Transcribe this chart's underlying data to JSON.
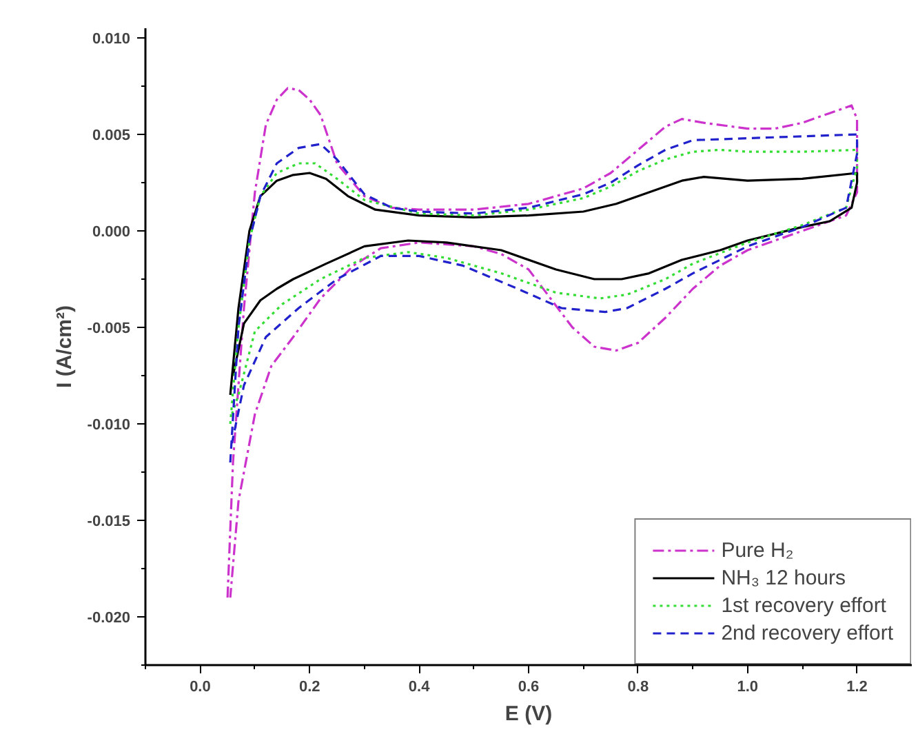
{
  "chart_data": {
    "type": "line",
    "xlabel": "E (V)",
    "ylabel": "I (A/cm²)",
    "xlim": [
      -0.1,
      1.3
    ],
    "ylim": [
      -0.0225,
      0.0105
    ],
    "xticks": [
      {
        "value": -0.1,
        "label": null
      },
      {
        "value": 0.0,
        "label": "0.0"
      },
      {
        "value": 0.1,
        "label": null
      },
      {
        "value": 0.2,
        "label": "0.2"
      },
      {
        "value": 0.3,
        "label": null
      },
      {
        "value": 0.4,
        "label": "0.4"
      },
      {
        "value": 0.5,
        "label": null
      },
      {
        "value": 0.6,
        "label": "0.6"
      },
      {
        "value": 0.7,
        "label": null
      },
      {
        "value": 0.8,
        "label": "0.8"
      },
      {
        "value": 0.9,
        "label": null
      },
      {
        "value": 1.0,
        "label": "1.0"
      },
      {
        "value": 1.1,
        "label": null
      },
      {
        "value": 1.2,
        "label": "1.2"
      }
    ],
    "yticks": [
      {
        "value": -0.0225,
        "label": null
      },
      {
        "value": -0.02,
        "label": "-0.020"
      },
      {
        "value": -0.0175,
        "label": null
      },
      {
        "value": -0.015,
        "label": "-0.015"
      },
      {
        "value": -0.0125,
        "label": null
      },
      {
        "value": -0.01,
        "label": "-0.010"
      },
      {
        "value": -0.0075,
        "label": null
      },
      {
        "value": -0.005,
        "label": "-0.005"
      },
      {
        "value": -0.0025,
        "label": null
      },
      {
        "value": 0.0,
        "label": "0.000"
      },
      {
        "value": 0.0025,
        "label": null
      },
      {
        "value": 0.005,
        "label": "0.005"
      },
      {
        "value": 0.0075,
        "label": null
      },
      {
        "value": 0.01,
        "label": "0.010"
      }
    ],
    "grid": false,
    "legend": "bottom right",
    "marker": "none",
    "series": [
      {
        "name": "Pure H₂",
        "color": "#cc33cc",
        "line_style": "dashdot",
        "x": [
          0.05,
          0.06,
          0.08,
          0.1,
          0.12,
          0.14,
          0.16,
          0.18,
          0.2,
          0.22,
          0.25,
          0.3,
          0.35,
          0.4,
          0.5,
          0.6,
          0.7,
          0.75,
          0.8,
          0.85,
          0.88,
          0.92,
          1.0,
          1.05,
          1.1,
          1.15,
          1.19,
          1.2,
          1.2,
          1.18,
          1.1,
          1.0,
          0.95,
          0.9,
          0.85,
          0.8,
          0.76,
          0.72,
          0.68,
          0.64,
          0.6,
          0.55,
          0.5,
          0.4,
          0.33,
          0.28,
          0.22,
          0.17,
          0.13,
          0.1,
          0.07,
          0.055
        ],
        "values": [
          -0.019,
          -0.012,
          -0.004,
          0.002,
          0.0055,
          0.0068,
          0.0074,
          0.0073,
          0.0068,
          0.006,
          0.0035,
          0.0018,
          0.0012,
          0.0011,
          0.0011,
          0.0014,
          0.0022,
          0.003,
          0.0042,
          0.0054,
          0.0058,
          0.0056,
          0.0053,
          0.0053,
          0.0056,
          0.0061,
          0.0065,
          0.0058,
          0.002,
          0.0008,
          0.0,
          -0.001,
          -0.0018,
          -0.003,
          -0.0045,
          -0.0058,
          -0.0062,
          -0.006,
          -0.005,
          -0.0035,
          -0.002,
          -0.0012,
          -0.0008,
          -0.0006,
          -0.0009,
          -0.0018,
          -0.0035,
          -0.0055,
          -0.007,
          -0.0095,
          -0.014,
          -0.019
        ]
      },
      {
        "name": "NH₃ 12 hours",
        "color": "#000000",
        "line_style": "solid",
        "x": [
          0.055,
          0.07,
          0.09,
          0.11,
          0.14,
          0.17,
          0.2,
          0.23,
          0.27,
          0.32,
          0.4,
          0.5,
          0.6,
          0.7,
          0.76,
          0.82,
          0.88,
          0.92,
          1.0,
          1.1,
          1.2,
          1.2,
          1.19,
          1.15,
          1.1,
          1.0,
          0.95,
          0.88,
          0.82,
          0.77,
          0.72,
          0.65,
          0.55,
          0.45,
          0.38,
          0.3,
          0.23,
          0.17,
          0.14,
          0.11,
          0.08,
          0.06
        ],
        "values": [
          -0.0085,
          -0.004,
          0.0,
          0.0018,
          0.0026,
          0.0029,
          0.003,
          0.0027,
          0.0018,
          0.0011,
          0.0008,
          0.0007,
          0.0008,
          0.001,
          0.0014,
          0.002,
          0.0026,
          0.0028,
          0.0026,
          0.0027,
          0.003,
          0.0025,
          0.0012,
          0.0005,
          0.0002,
          -0.0005,
          -0.001,
          -0.0015,
          -0.0022,
          -0.0025,
          -0.0025,
          -0.002,
          -0.001,
          -0.0006,
          -0.0005,
          -0.0008,
          -0.0017,
          -0.0025,
          -0.003,
          -0.0036,
          -0.0048,
          -0.0075
        ]
      },
      {
        "name": "1st recovery effort",
        "color": "#33dd33",
        "line_style": "dotted",
        "x": [
          0.055,
          0.07,
          0.09,
          0.11,
          0.14,
          0.18,
          0.21,
          0.25,
          0.3,
          0.4,
          0.5,
          0.6,
          0.7,
          0.75,
          0.8,
          0.85,
          0.9,
          0.95,
          1.0,
          1.1,
          1.2,
          1.2,
          1.18,
          1.1,
          1.0,
          0.9,
          0.85,
          0.78,
          0.73,
          0.65,
          0.55,
          0.45,
          0.38,
          0.3,
          0.22,
          0.15,
          0.1,
          0.07,
          0.058
        ],
        "values": [
          -0.01,
          -0.005,
          -0.0005,
          0.0018,
          0.003,
          0.0035,
          0.0035,
          0.0027,
          0.0016,
          0.0009,
          0.0008,
          0.0011,
          0.0017,
          0.0023,
          0.0031,
          0.0037,
          0.0041,
          0.0042,
          0.0041,
          0.0041,
          0.0042,
          0.0033,
          0.0012,
          0.0003,
          -0.0006,
          -0.0017,
          -0.0025,
          -0.0033,
          -0.0035,
          -0.0032,
          -0.0022,
          -0.0014,
          -0.0011,
          -0.0014,
          -0.0025,
          -0.0038,
          -0.0052,
          -0.0085,
          -0.0095
        ]
      },
      {
        "name": "2nd recovery effort",
        "color": "#2222cc",
        "line_style": "dashed",
        "x": [
          0.055,
          0.07,
          0.09,
          0.11,
          0.14,
          0.18,
          0.22,
          0.25,
          0.3,
          0.35,
          0.4,
          0.5,
          0.6,
          0.7,
          0.75,
          0.8,
          0.85,
          0.9,
          1.0,
          1.1,
          1.2,
          1.2,
          1.18,
          1.1,
          1.0,
          0.9,
          0.85,
          0.78,
          0.74,
          0.66,
          0.58,
          0.48,
          0.4,
          0.33,
          0.25,
          0.18,
          0.12,
          0.08,
          0.058
        ],
        "values": [
          -0.012,
          -0.005,
          -0.0005,
          0.0018,
          0.0035,
          0.0043,
          0.0045,
          0.0037,
          0.0019,
          0.0012,
          0.001,
          0.0009,
          0.0012,
          0.0019,
          0.0025,
          0.0034,
          0.0042,
          0.0047,
          0.0048,
          0.0049,
          0.005,
          0.004,
          0.0012,
          0.0002,
          -0.0008,
          -0.0022,
          -0.003,
          -0.004,
          -0.0042,
          -0.004,
          -0.003,
          -0.0018,
          -0.0013,
          -0.0013,
          -0.0025,
          -0.004,
          -0.0055,
          -0.008,
          -0.011
        ]
      }
    ]
  }
}
